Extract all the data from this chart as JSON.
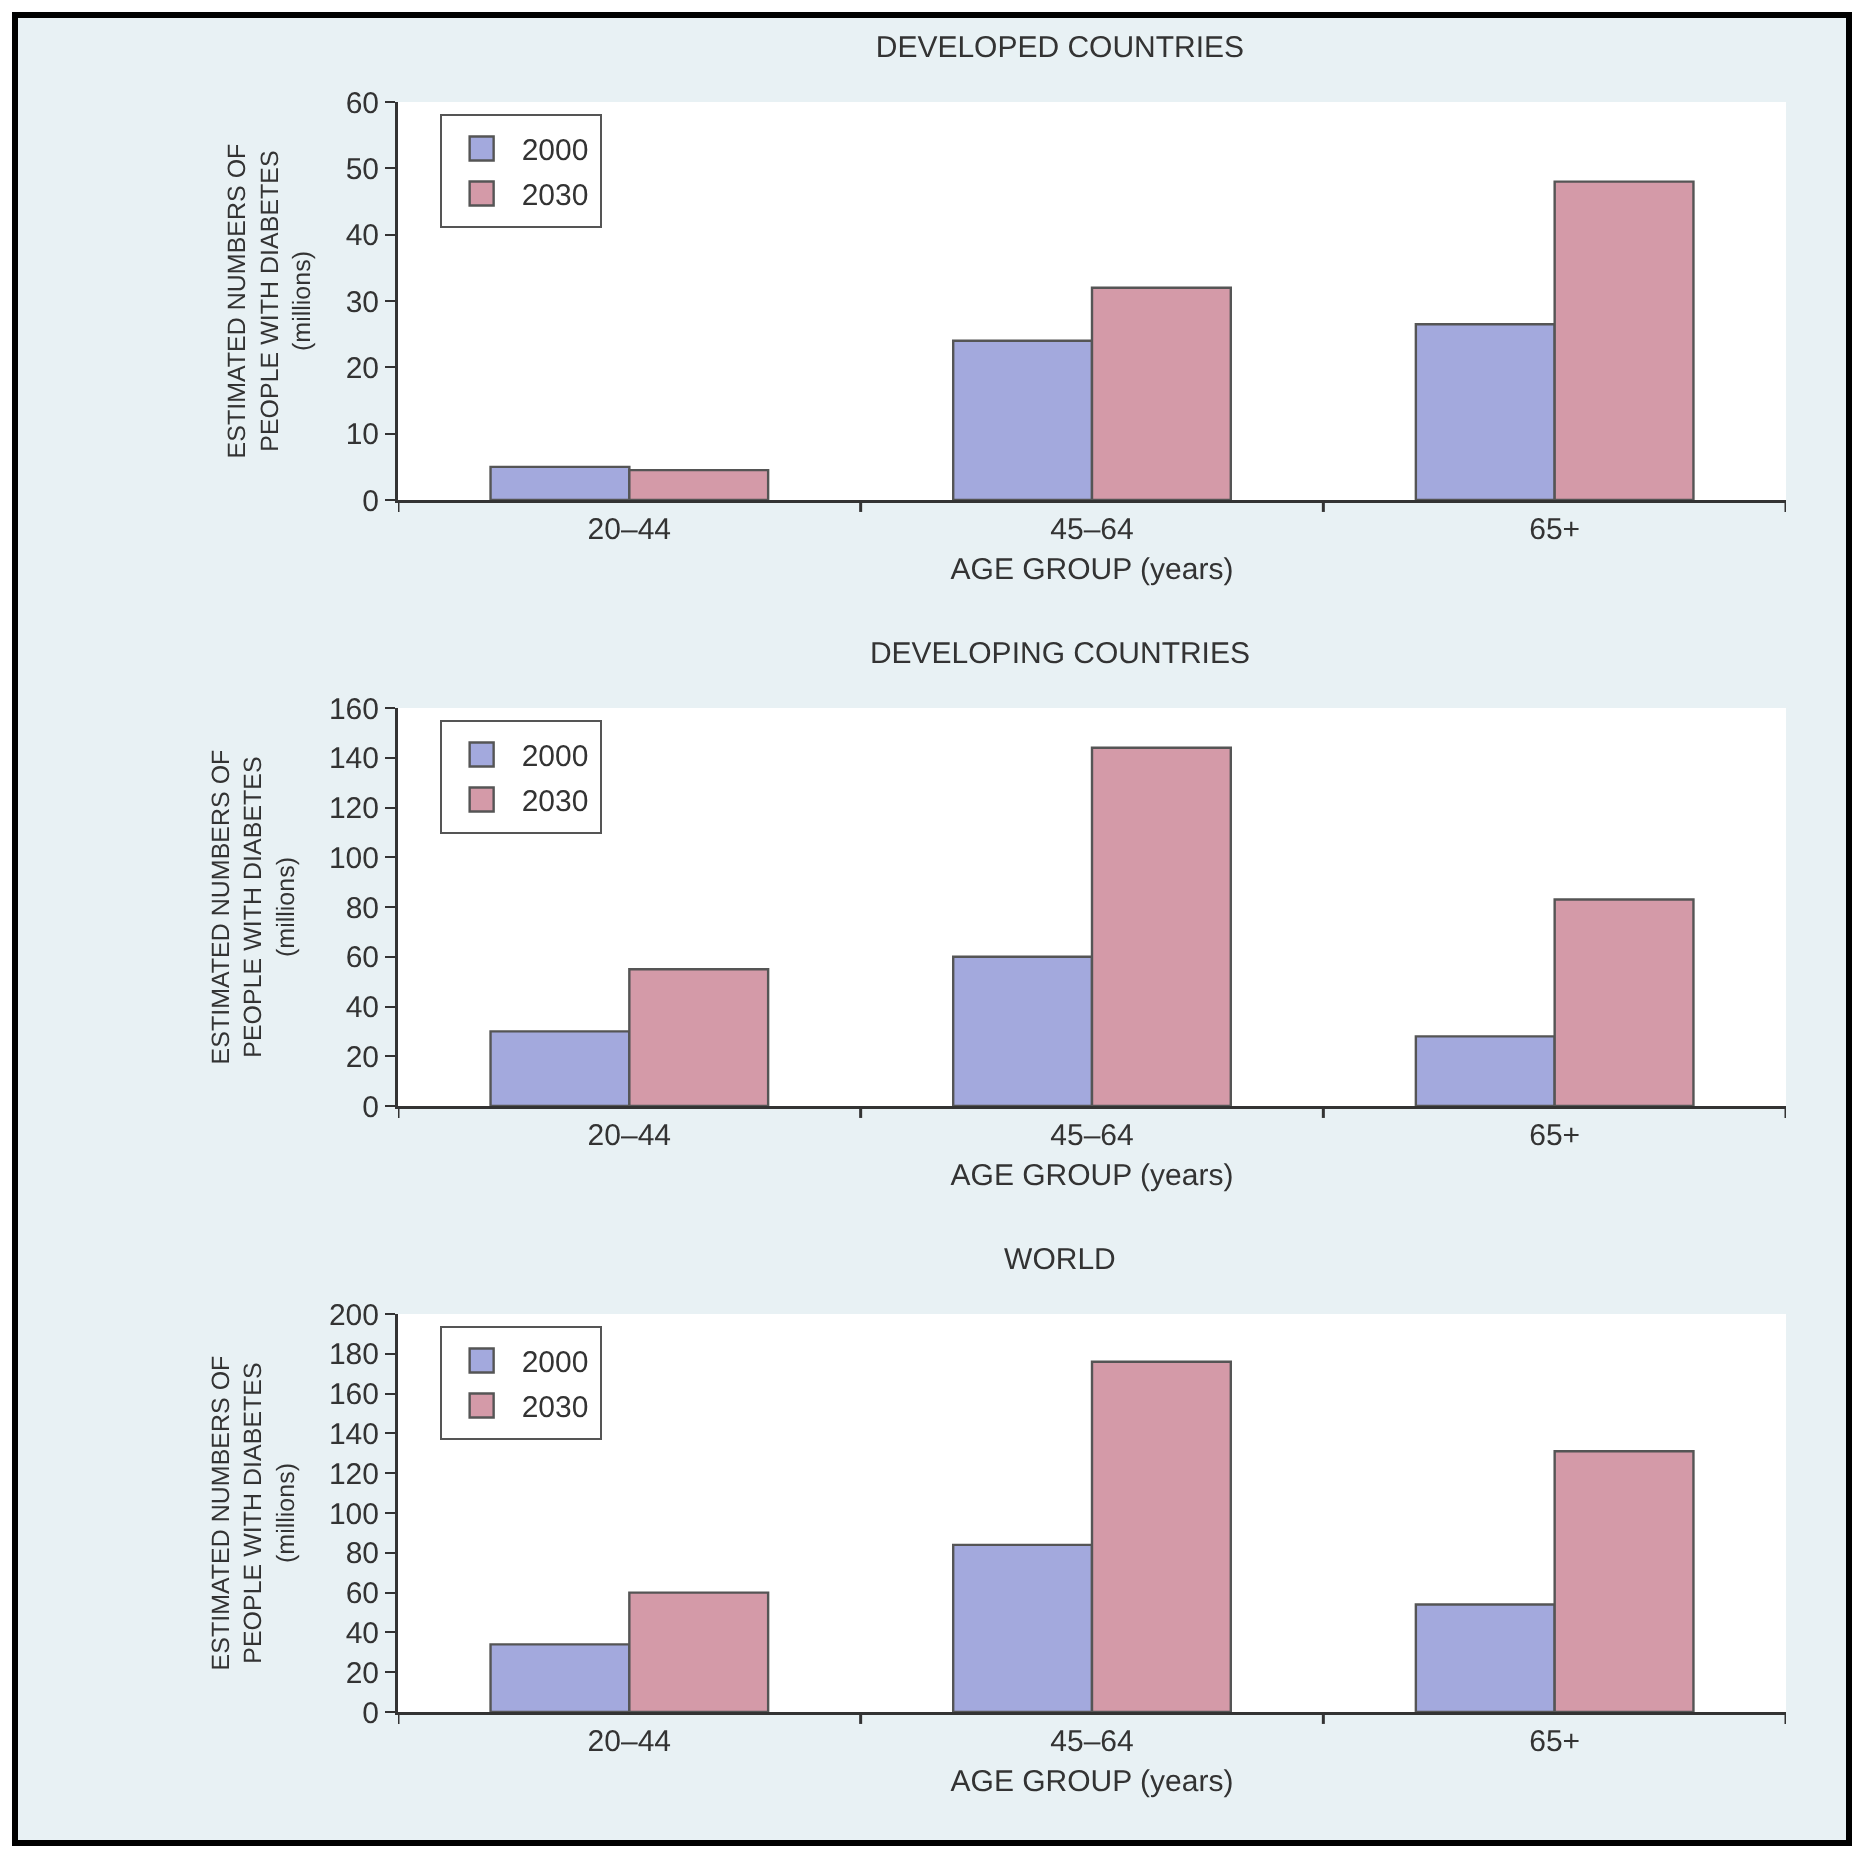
{
  "chart_data": [
    {
      "type": "bar",
      "title": "DEVELOPED COUNTRIES",
      "xlabel": "AGE GROUP (years)",
      "ylabel": "ESTIMATED NUMBERS OF\nPEOPLE WITH DIABETES\n(millions)",
      "categories": [
        "20–44",
        "45–64",
        "65+"
      ],
      "series": [
        {
          "name": "2000",
          "color": "#a3a9dd",
          "values": [
            5,
            24,
            26.5
          ]
        },
        {
          "name": "2030",
          "color": "#d49aa8",
          "values": [
            4.5,
            32,
            48
          ]
        }
      ],
      "ylim": [
        0,
        60
      ],
      "yticks": [
        0,
        10,
        20,
        30,
        40,
        50,
        60
      ],
      "legend": "top left",
      "grid": false
    },
    {
      "type": "bar",
      "title": "DEVELOPING COUNTRIES",
      "xlabel": "AGE GROUP (years)",
      "ylabel": "ESTIMATED NUMBERS OF\nPEOPLE WITH DIABETES\n(millions)",
      "categories": [
        "20–44",
        "45–64",
        "65+"
      ],
      "series": [
        {
          "name": "2000",
          "color": "#a3a9dd",
          "values": [
            30,
            60,
            28
          ]
        },
        {
          "name": "2030",
          "color": "#d49aa8",
          "values": [
            55,
            144,
            83
          ]
        }
      ],
      "ylim": [
        0,
        160
      ],
      "yticks": [
        0,
        20,
        40,
        60,
        80,
        100,
        120,
        140,
        160
      ],
      "legend": "top left",
      "grid": false
    },
    {
      "type": "bar",
      "title": "WORLD",
      "xlabel": "AGE GROUP (years)",
      "ylabel": "ESTIMATED NUMBERS OF\nPEOPLE WITH DIABETES\n(millions)",
      "categories": [
        "20–44",
        "45–64",
        "65+"
      ],
      "series": [
        {
          "name": "2000",
          "color": "#a3a9dd",
          "values": [
            34,
            84,
            54
          ]
        },
        {
          "name": "2030",
          "color": "#d49aa8",
          "values": [
            60,
            176,
            131
          ]
        }
      ],
      "ylim": [
        0,
        200
      ],
      "yticks": [
        0,
        20,
        40,
        60,
        80,
        100,
        120,
        140,
        160,
        180,
        200
      ],
      "legend": "top left",
      "grid": false
    }
  ]
}
